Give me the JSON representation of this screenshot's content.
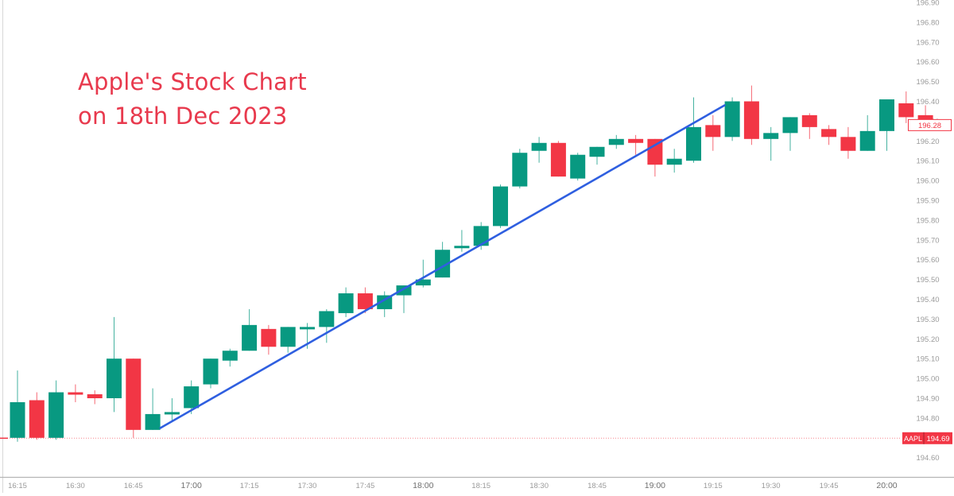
{
  "chart_data": {
    "type": "candlestick",
    "title": "Apple's Stock Chart on 18th Dec 2023",
    "title_lines": [
      "Apple's Stock Chart",
      "on 18th Dec 2023"
    ],
    "symbol": "AAPL",
    "xlabel": "",
    "ylabel": "",
    "interval_minutes": 5,
    "ylim": [
      194.55,
      196.92
    ],
    "y_ticks": [
      196.9,
      196.8,
      196.7,
      196.6,
      196.5,
      196.4,
      196.3,
      196.2,
      196.1,
      196.0,
      195.9,
      195.8,
      195.7,
      195.6,
      195.5,
      195.4,
      195.3,
      195.2,
      195.1,
      195.0,
      194.9,
      194.8,
      194.6
    ],
    "x_ticks": [
      "16:15",
      "16:30",
      "16:45",
      "17:00",
      "17:15",
      "17:30",
      "17:45",
      "18:00",
      "18:15",
      "18:30",
      "18:45",
      "19:00",
      "19:15",
      "19:30",
      "19:45",
      "20:00"
    ],
    "bold_x_ticks": [
      "17:00",
      "18:00",
      "19:00",
      "20:00"
    ],
    "grid": false,
    "last_price_label": "196.28",
    "reference_price_label": "194.69",
    "colors": {
      "up": "#089981",
      "down": "#f23645",
      "trendline": "#2f5fe0",
      "axis_text": "#9b9b9b",
      "title": "#e8394d"
    },
    "trendline": {
      "from": {
        "candle_index": 7.4,
        "price": 194.75
      },
      "to": {
        "candle_index": 36.6,
        "price": 196.38
      }
    },
    "candles": [
      {
        "t": "16:15",
        "o": 194.7,
        "h": 195.04,
        "l": 194.68,
        "c": 194.88
      },
      {
        "t": "16:20",
        "o": 194.89,
        "h": 194.93,
        "l": 194.69,
        "c": 194.7
      },
      {
        "t": "16:25",
        "o": 194.7,
        "h": 194.99,
        "l": 194.69,
        "c": 194.93
      },
      {
        "t": "16:30",
        "o": 194.93,
        "h": 194.97,
        "l": 194.88,
        "c": 194.92
      },
      {
        "t": "16:35",
        "o": 194.92,
        "h": 194.94,
        "l": 194.87,
        "c": 194.9
      },
      {
        "t": "16:40",
        "o": 194.9,
        "h": 195.31,
        "l": 194.83,
        "c": 195.1
      },
      {
        "t": "16:45",
        "o": 195.1,
        "h": 195.1,
        "l": 194.7,
        "c": 194.74
      },
      {
        "t": "16:50",
        "o": 194.74,
        "h": 194.95,
        "l": 194.74,
        "c": 194.82
      },
      {
        "t": "16:55",
        "o": 194.82,
        "h": 194.9,
        "l": 194.78,
        "c": 194.83
      },
      {
        "t": "17:00",
        "o": 194.85,
        "h": 194.99,
        "l": 194.82,
        "c": 194.96
      },
      {
        "t": "17:05",
        "o": 194.97,
        "h": 195.1,
        "l": 194.95,
        "c": 195.1
      },
      {
        "t": "17:10",
        "o": 195.09,
        "h": 195.15,
        "l": 195.06,
        "c": 195.14
      },
      {
        "t": "17:15",
        "o": 195.14,
        "h": 195.35,
        "l": 195.14,
        "c": 195.27
      },
      {
        "t": "17:20",
        "o": 195.25,
        "h": 195.27,
        "l": 195.12,
        "c": 195.16
      },
      {
        "t": "17:25",
        "o": 195.16,
        "h": 195.26,
        "l": 195.13,
        "c": 195.26
      },
      {
        "t": "17:30",
        "o": 195.25,
        "h": 195.28,
        "l": 195.15,
        "c": 195.26
      },
      {
        "t": "17:35",
        "o": 195.26,
        "h": 195.35,
        "l": 195.18,
        "c": 195.34
      },
      {
        "t": "17:40",
        "o": 195.33,
        "h": 195.46,
        "l": 195.31,
        "c": 195.43
      },
      {
        "t": "17:45",
        "o": 195.43,
        "h": 195.46,
        "l": 195.33,
        "c": 195.35
      },
      {
        "t": "17:50",
        "o": 195.35,
        "h": 195.44,
        "l": 195.31,
        "c": 195.42
      },
      {
        "t": "17:55",
        "o": 195.42,
        "h": 195.47,
        "l": 195.33,
        "c": 195.47
      },
      {
        "t": "18:00",
        "o": 195.47,
        "h": 195.6,
        "l": 195.46,
        "c": 195.5
      },
      {
        "t": "18:05",
        "o": 195.51,
        "h": 195.69,
        "l": 195.51,
        "c": 195.65
      },
      {
        "t": "18:10",
        "o": 195.66,
        "h": 195.75,
        "l": 195.64,
        "c": 195.67
      },
      {
        "t": "18:15",
        "o": 195.67,
        "h": 195.79,
        "l": 195.65,
        "c": 195.77
      },
      {
        "t": "18:20",
        "o": 195.77,
        "h": 195.98,
        "l": 195.76,
        "c": 195.97
      },
      {
        "t": "18:25",
        "o": 195.97,
        "h": 196.16,
        "l": 195.96,
        "c": 196.14
      },
      {
        "t": "18:30",
        "o": 196.15,
        "h": 196.22,
        "l": 196.09,
        "c": 196.19
      },
      {
        "t": "18:35",
        "o": 196.19,
        "h": 196.2,
        "l": 196.02,
        "c": 196.02
      },
      {
        "t": "18:40",
        "o": 196.01,
        "h": 196.14,
        "l": 196.0,
        "c": 196.13
      },
      {
        "t": "18:45",
        "o": 196.12,
        "h": 196.17,
        "l": 196.08,
        "c": 196.17
      },
      {
        "t": "18:50",
        "o": 196.18,
        "h": 196.23,
        "l": 196.16,
        "c": 196.21
      },
      {
        "t": "18:55",
        "o": 196.21,
        "h": 196.23,
        "l": 196.13,
        "c": 196.19
      },
      {
        "t": "19:00",
        "o": 196.21,
        "h": 196.21,
        "l": 196.02,
        "c": 196.08
      },
      {
        "t": "19:05",
        "o": 196.08,
        "h": 196.16,
        "l": 196.04,
        "c": 196.11
      },
      {
        "t": "19:10",
        "o": 196.1,
        "h": 196.42,
        "l": 196.09,
        "c": 196.27
      },
      {
        "t": "19:15",
        "o": 196.28,
        "h": 196.33,
        "l": 196.15,
        "c": 196.22
      },
      {
        "t": "19:20",
        "o": 196.22,
        "h": 196.42,
        "l": 196.2,
        "c": 196.4
      },
      {
        "t": "19:25",
        "o": 196.4,
        "h": 196.48,
        "l": 196.18,
        "c": 196.21
      },
      {
        "t": "19:30",
        "o": 196.21,
        "h": 196.27,
        "l": 196.1,
        "c": 196.24
      },
      {
        "t": "19:35",
        "o": 196.24,
        "h": 196.32,
        "l": 196.15,
        "c": 196.32
      },
      {
        "t": "19:40",
        "o": 196.33,
        "h": 196.34,
        "l": 196.21,
        "c": 196.27
      },
      {
        "t": "19:45",
        "o": 196.26,
        "h": 196.28,
        "l": 196.18,
        "c": 196.22
      },
      {
        "t": "19:50",
        "o": 196.22,
        "h": 196.27,
        "l": 196.11,
        "c": 196.15
      },
      {
        "t": "19:55",
        "o": 196.15,
        "h": 196.33,
        "l": 196.15,
        "c": 196.25
      },
      {
        "t": "20:00",
        "o": 196.25,
        "h": 196.41,
        "l": 196.15,
        "c": 196.41
      },
      {
        "t": "20:05",
        "o": 196.39,
        "h": 196.45,
        "l": 196.29,
        "c": 196.32
      },
      {
        "t": "20:10",
        "o": 196.33,
        "h": 196.38,
        "l": 196.27,
        "c": 196.28
      }
    ]
  }
}
